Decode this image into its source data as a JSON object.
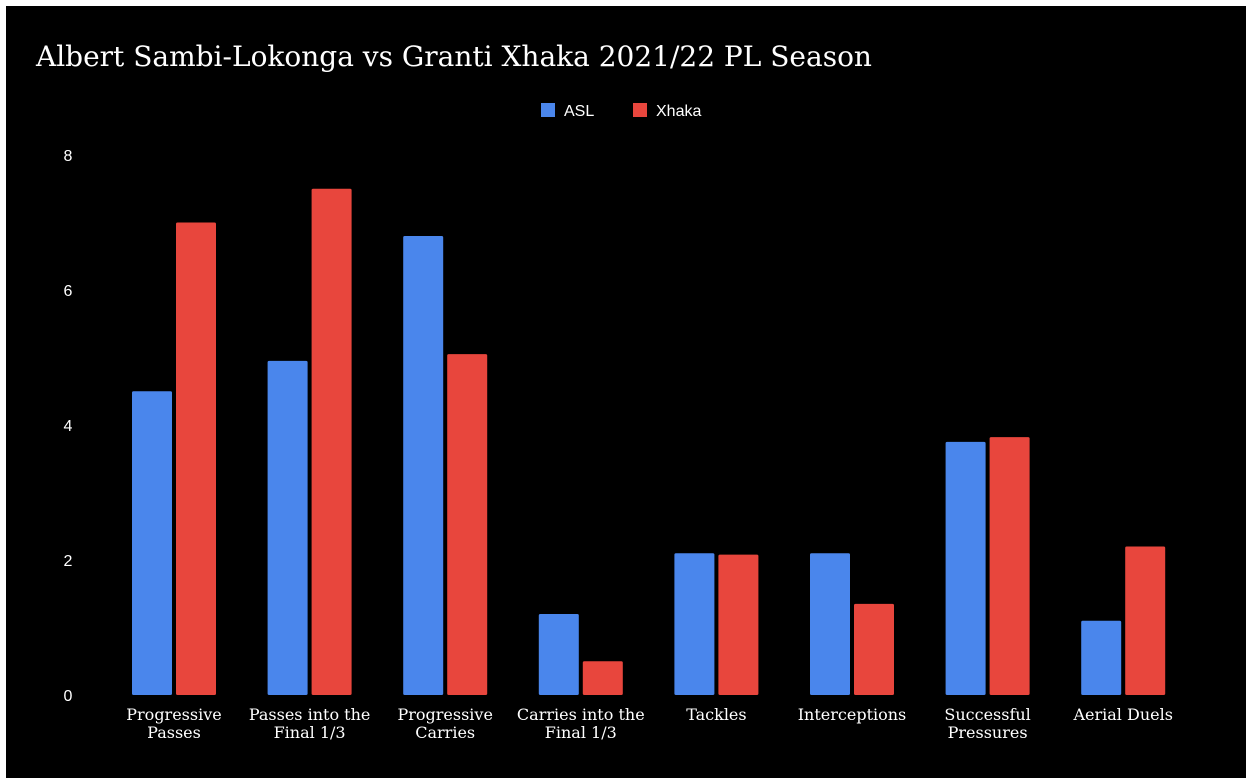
{
  "chart_data": {
    "type": "bar",
    "title": "Albert Sambi-Lokonga vs Granti Xhaka 2021/22 PL Season",
    "categories": [
      [
        "Progressive",
        "Passes"
      ],
      [
        "Passes into the",
        "Final 1/3"
      ],
      [
        "Progressive",
        "Carries"
      ],
      [
        "Carries into the",
        "Final 1/3"
      ],
      [
        "Tackles"
      ],
      [
        "Interceptions"
      ],
      [
        "Successful",
        "Pressures"
      ],
      [
        "Aerial Duels"
      ]
    ],
    "series": [
      {
        "name": "ASL",
        "color": "#4a86ec",
        "values": [
          4.5,
          4.95,
          6.8,
          1.2,
          2.1,
          2.1,
          3.75,
          1.1
        ]
      },
      {
        "name": "Xhaka",
        "color": "#e8463d",
        "values": [
          7.0,
          7.5,
          5.05,
          0.5,
          2.08,
          1.35,
          3.82,
          2.2
        ]
      }
    ],
    "ylim": [
      0,
      8
    ],
    "yticks": [
      "0",
      "2",
      "4",
      "6",
      "8"
    ],
    "grid": false,
    "legend_position": "top-center"
  }
}
